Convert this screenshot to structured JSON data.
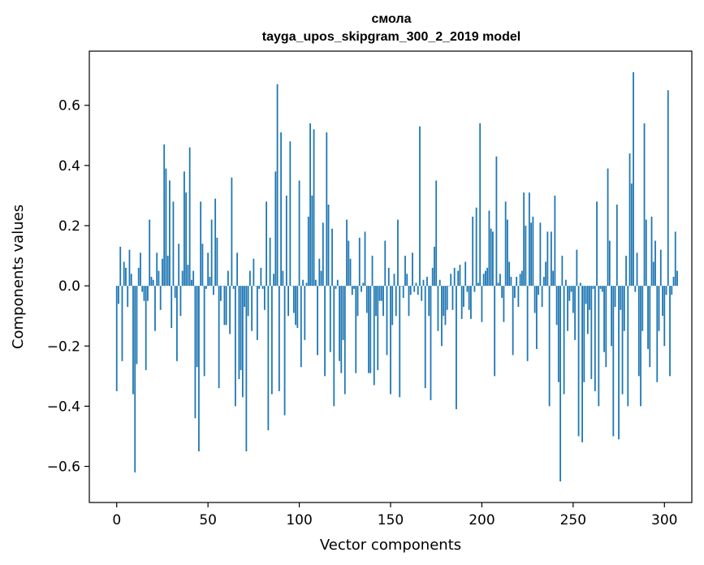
{
  "chart_data": {
    "type": "bar",
    "title": "смола",
    "subtitle": "tayga_upos_skipgram_300_2_2019 model",
    "xlabel": "Vector components",
    "ylabel": "Components values",
    "xlim": [
      -15,
      315
    ],
    "ylim": [
      -0.72,
      0.78
    ],
    "x_ticks": [
      0,
      50,
      100,
      150,
      200,
      250,
      300
    ],
    "x_tick_labels": [
      "0",
      "50",
      "100",
      "150",
      "200",
      "250",
      "300"
    ],
    "y_ticks": [
      -0.6,
      -0.4,
      -0.2,
      0.0,
      0.2,
      0.4,
      0.6
    ],
    "y_tick_labels": [
      "−0.6",
      "−0.4",
      "−0.2",
      "0.0",
      "0.2",
      "0.4",
      "0.6"
    ],
    "bar_color": "#1f77b4",
    "grid": false,
    "legend": "none",
    "values": [
      -0.35,
      -0.06,
      0.13,
      -0.25,
      0.08,
      0.06,
      -0.07,
      0.12,
      0.04,
      -0.36,
      -0.62,
      -0.26,
      0.06,
      0.11,
      -0.02,
      -0.05,
      -0.28,
      -0.05,
      0.22,
      0.03,
      0.02,
      -0.15,
      0.11,
      0.05,
      -0.08,
      0.09,
      0.47,
      0.39,
      0.1,
      0.35,
      -0.14,
      0.28,
      -0.04,
      -0.25,
      0.14,
      -0.1,
      0.05,
      0.38,
      0.31,
      0.07,
      0.46,
      0.02,
      0.05,
      -0.44,
      -0.27,
      -0.55,
      0.28,
      0.14,
      -0.3,
      -0.01,
      0.11,
      0.03,
      0.22,
      -0.03,
      0.29,
      0.16,
      -0.34,
      -0.05,
      0.0,
      -0.13,
      -0.13,
      0.05,
      -0.16,
      0.36,
      -0.01,
      -0.4,
      0.11,
      -0.31,
      -0.28,
      -0.37,
      -0.07,
      -0.55,
      -0.1,
      0.05,
      -0.15,
      0.09,
      0.0,
      -0.18,
      -0.01,
      0.06,
      -0.01,
      -0.08,
      0.28,
      -0.48,
      0.16,
      -0.36,
      0.04,
      0.38,
      0.67,
      -0.35,
      0.51,
      0.05,
      -0.43,
      0.3,
      -0.1,
      0.48,
      0.0,
      -0.09,
      -0.13,
      -0.14,
      0.35,
      -0.27,
      0.02,
      -0.18,
      0.01,
      0.23,
      0.54,
      0.3,
      0.52,
      0.02,
      -0.23,
      0.09,
      0.05,
      0.21,
      -0.3,
      0.51,
      0.27,
      -0.22,
      0.19,
      -0.4,
      -0.01,
      0.02,
      -0.25,
      -0.29,
      -0.18,
      -0.36,
      0.22,
      0.15,
      0.09,
      -0.03,
      -0.01,
      -0.29,
      -0.1,
      0.16,
      -0.02,
      0.01,
      0.18,
      -0.09,
      -0.29,
      -0.29,
      0.1,
      -0.33,
      -0.1,
      -0.28,
      -0.05,
      -0.05,
      -0.1,
      0.15,
      -0.23,
      0.06,
      -0.36,
      -0.13,
      0.04,
      -0.1,
      0.22,
      -0.37,
      0.0,
      -0.04,
      0.1,
      0.04,
      -0.1,
      -0.03,
      0.11,
      -0.02,
      0.01,
      -0.03,
      0.53,
      -0.05,
      0.02,
      -0.34,
      0.03,
      -0.1,
      -0.38,
      0.06,
      0.13,
      0.35,
      -0.15,
      0.02,
      -0.2,
      -0.1,
      -0.13,
      -0.08,
      0.0,
      0.04,
      -0.08,
      0.06,
      -0.41,
      0.05,
      0.07,
      -0.11,
      -0.07,
      0.08,
      -0.02,
      -0.08,
      -0.11,
      0.23,
      -0.02,
      0.26,
      0.01,
      0.54,
      -0.12,
      0.04,
      0.05,
      0.06,
      0.25,
      0.19,
      0.18,
      -0.3,
      0.43,
      0.01,
      0.04,
      -0.04,
      -0.12,
      0.28,
      0.22,
      0.08,
      0.03,
      -0.23,
      -0.04,
      0.03,
      -0.07,
      0.04,
      0.05,
      0.31,
      0.2,
      -0.25,
      0.31,
      0.21,
      0.23,
      -0.09,
      -0.21,
      -0.03,
      0.21,
      -0.07,
      0.03,
      0.08,
      0.18,
      -0.4,
      0.18,
      0.05,
      0.3,
      -0.13,
      -0.32,
      -0.65,
      0.1,
      -0.36,
      0.02,
      -0.15,
      -0.05,
      -0.02,
      -0.09,
      -0.18,
      0.12,
      -0.5,
      0.01,
      -0.52,
      -0.32,
      -0.06,
      -0.16,
      -0.08,
      -0.31,
      -0.01,
      -0.35,
      0.28,
      -0.4,
      -0.01,
      -0.02,
      -0.22,
      -0.27,
      0.39,
      0.15,
      -0.2,
      -0.5,
      -0.07,
      0.27,
      -0.51,
      -0.08,
      -0.36,
      -0.15,
      0.1,
      -0.4,
      0.44,
      0.34,
      0.71,
      -0.02,
      0.11,
      -0.3,
      -0.4,
      -0.15,
      0.54,
      0.22,
      -0.21,
      -0.27,
      0.23,
      0.08,
      0.15,
      -0.32,
      -0.15,
      0.12,
      -0.1,
      -0.2,
      -0.03,
      0.65,
      -0.3,
      -0.03,
      0.03,
      0.18,
      0.05
    ]
  }
}
